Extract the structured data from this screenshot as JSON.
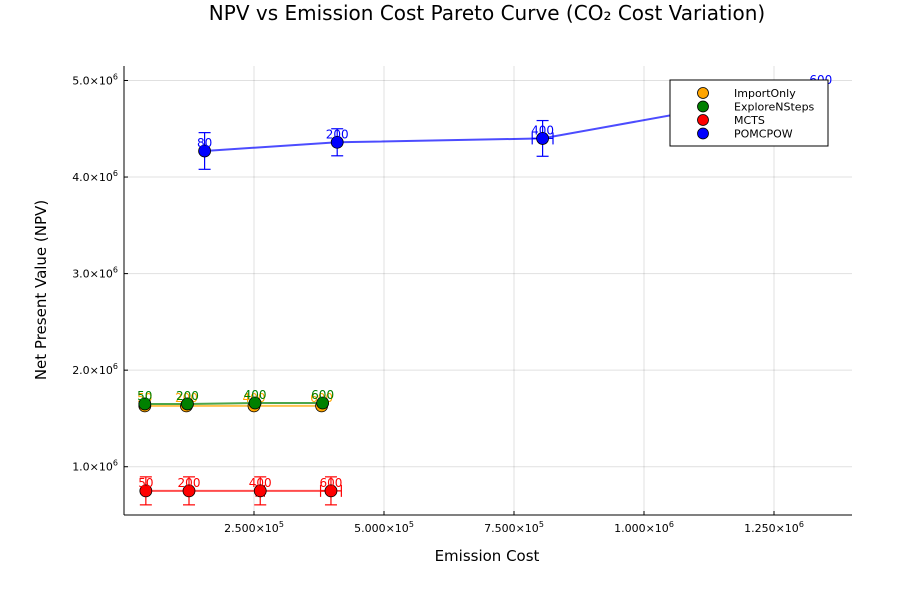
{
  "chart_data": {
    "type": "scatter",
    "title": "NPV vs Emission Cost Pareto Curve (CO₂ Cost Variation)",
    "xlabel": "Emission Cost",
    "ylabel": "Net Present Value (NPV)",
    "xlim": [
      0,
      1400000
    ],
    "ylim": [
      500000,
      5150000
    ],
    "xticks": [
      250000,
      500000,
      750000,
      1000000,
      1250000
    ],
    "xtick_labels": [
      {
        "mantissa": "2.500×10",
        "exp": "5"
      },
      {
        "mantissa": "5.000×10",
        "exp": "5"
      },
      {
        "mantissa": "7.500×10",
        "exp": "5"
      },
      {
        "mantissa": "1.000×10",
        "exp": "6"
      },
      {
        "mantissa": "1.250×10",
        "exp": "6"
      }
    ],
    "yticks": [
      1000000,
      2000000,
      3000000,
      4000000,
      5000000
    ],
    "ytick_labels": [
      {
        "mantissa": "1.0×10",
        "exp": "6"
      },
      {
        "mantissa": "2.0×10",
        "exp": "6"
      },
      {
        "mantissa": "3.0×10",
        "exp": "6"
      },
      {
        "mantissa": "4.0×10",
        "exp": "6"
      },
      {
        "mantissa": "5.0×10",
        "exp": "6"
      }
    ],
    "grid": true,
    "legend_position": "top-right",
    "series": [
      {
        "name": "ImportOnly",
        "color": "#FFA500",
        "points": [
          {
            "x": 40000,
            "y": 1630000,
            "xerr": 0,
            "yerr": 0,
            "label": "50"
          },
          {
            "x": 120000,
            "y": 1630000,
            "xerr": 0,
            "yerr": 0,
            "label": "200"
          },
          {
            "x": 250000,
            "y": 1630000,
            "xerr": 0,
            "yerr": 0,
            "label": "400"
          },
          {
            "x": 380000,
            "y": 1630000,
            "xerr": 0,
            "yerr": 0,
            "label": "600"
          }
        ]
      },
      {
        "name": "ExploreNSteps",
        "color": "#008000",
        "points": [
          {
            "x": 40000,
            "y": 1650000,
            "xerr": 0,
            "yerr": 0,
            "label": "50"
          },
          {
            "x": 122000,
            "y": 1650000,
            "xerr": 0,
            "yerr": 0,
            "label": "200"
          },
          {
            "x": 252000,
            "y": 1660000,
            "xerr": 0,
            "yerr": 0,
            "label": "400"
          },
          {
            "x": 382000,
            "y": 1660000,
            "xerr": 0,
            "yerr": 0,
            "label": "600"
          }
        ]
      },
      {
        "name": "MCTS",
        "color": "#FF0000",
        "points": [
          {
            "x": 42000,
            "y": 750000,
            "xerr": 0,
            "yerr": 145000,
            "label": "50"
          },
          {
            "x": 125000,
            "y": 750000,
            "xerr": 0,
            "yerr": 145000,
            "label": "200"
          },
          {
            "x": 262000,
            "y": 750000,
            "xerr": 8000,
            "yerr": 145000,
            "label": "400"
          },
          {
            "x": 398000,
            "y": 750000,
            "xerr": 20000,
            "yerr": 145000,
            "label": "600"
          }
        ]
      },
      {
        "name": "POMCPOW",
        "color": "#0000FF",
        "points": [
          {
            "x": 155000,
            "y": 4270000,
            "xerr": 0,
            "yerr": 190000,
            "label": "80"
          },
          {
            "x": 410000,
            "y": 4360000,
            "xerr": 0,
            "yerr": 140000,
            "label": "200"
          },
          {
            "x": 805000,
            "y": 4400000,
            "xerr": 20000,
            "yerr": 185000,
            "label": "400"
          },
          {
            "x": 1340000,
            "y": 4920000,
            "xerr": 0,
            "yerr": 0,
            "label": "600"
          }
        ]
      }
    ]
  }
}
